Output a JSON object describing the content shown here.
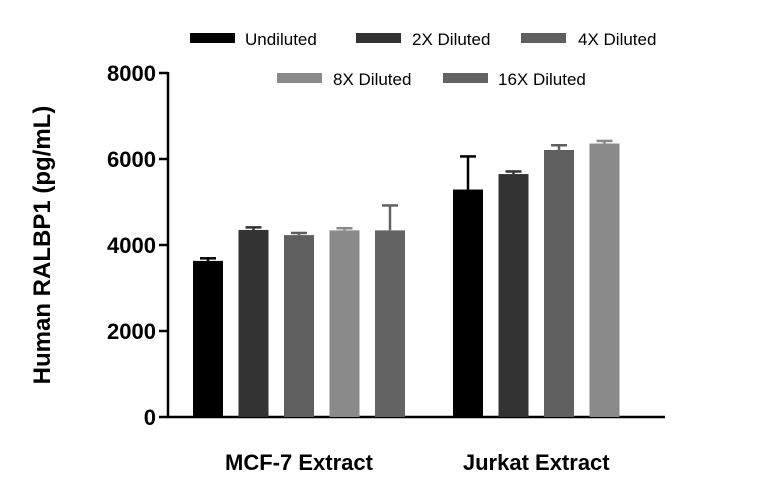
{
  "chart_data": {
    "type": "bar",
    "title": "",
    "xlabel": "",
    "ylabel": "Human RALBP1 (pg/mL)",
    "ylim": [
      0,
      8000
    ],
    "yticks": [
      "0",
      "2000",
      "4000",
      "6000",
      "8000"
    ],
    "categories": [
      "MCF-7 Extract",
      "Jurkat Extract"
    ],
    "series": [
      {
        "name": "Undiluted",
        "color": "#000000",
        "values": [
          3630,
          5290
        ],
        "errors": [
          60,
          770
        ]
      },
      {
        "name": "2X Diluted",
        "color": "#333333",
        "values": [
          4350,
          5650
        ],
        "errors": [
          60,
          60
        ]
      },
      {
        "name": "4X Diluted",
        "color": "#5f5f5f",
        "values": [
          4230,
          6210
        ],
        "errors": [
          50,
          110
        ]
      },
      {
        "name": "8X Diluted",
        "color": "#8a8a8a",
        "values": [
          4340,
          6360
        ],
        "errors": [
          50,
          60
        ]
      },
      {
        "name": "16X Diluted",
        "color": "#636363",
        "values": [
          4340,
          null
        ],
        "errors": [
          580,
          null
        ]
      }
    ],
    "legend_position": "top"
  }
}
